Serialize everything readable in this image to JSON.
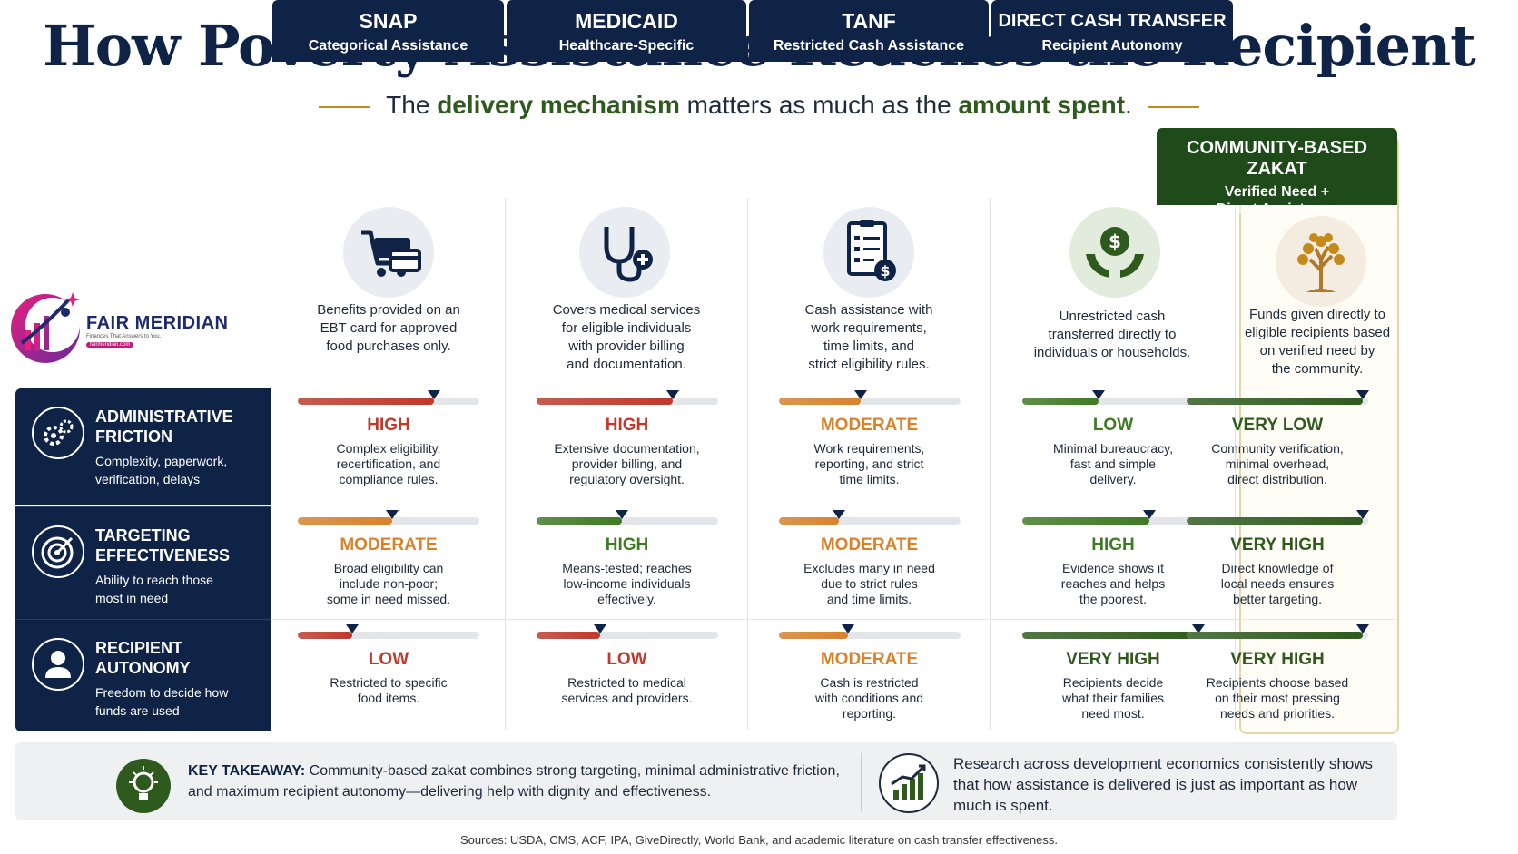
{
  "title": "How Poverty Assistance Reaches the Recipient",
  "subtitle": {
    "pre": "The ",
    "em1": "delivery mechanism",
    "mid": " matters as much as the ",
    "em2": "amount spent",
    "post": "."
  },
  "logo": {
    "name": "FAIR MERIDIAN",
    "tagline": "Finances That Answers to You.",
    "url": "fairmeridian.com"
  },
  "columns": [
    {
      "name": "SNAP",
      "sub": "Categorical Assistance",
      "icon": "shopping-cart-card-icon",
      "desc": [
        "Benefits provided on an",
        "EBT card for approved",
        "food purchases only."
      ]
    },
    {
      "name": "MEDICAID",
      "sub": "Healthcare-Specific",
      "icon": "stethoscope-icon",
      "desc": [
        "Covers medical services",
        "for eligible individuals",
        "with provider billing",
        "and documentation."
      ]
    },
    {
      "name": "TANF",
      "sub": "Restricted Cash Assistance",
      "icon": "document-dollar-icon",
      "desc": [
        "Cash assistance with",
        "work requirements,",
        "time limits, and",
        "strict eligibility rules."
      ]
    },
    {
      "name": "DIRECT CASH TRANSFER",
      "sub": "Recipient Autonomy",
      "icon": "hands-dollar-icon",
      "desc": [
        "Unrestricted cash",
        "transferred directly to",
        "individuals or households."
      ]
    },
    {
      "name": "COMMUNITY-BASED ZAKAT",
      "sub": "Verified Need +",
      "sub2": "Direct Assistance",
      "icon": "tree-icon",
      "desc": [
        "Funds given directly to",
        "eligible recipients based",
        "on verified need by",
        "the community."
      ]
    }
  ],
  "rows": [
    {
      "title1": "ADMINISTRATIVE",
      "title2": "FRICTION",
      "sub": [
        "Complexity, paperwork,",
        "verification, delays"
      ],
      "icon": "gears-icon",
      "cells": [
        {
          "rating": "HIGH",
          "level": 0.75,
          "color": "#c0392b",
          "desc": [
            "Complex eligibility,",
            "recertification, and",
            "compliance rules."
          ]
        },
        {
          "rating": "HIGH",
          "level": 0.75,
          "color": "#c0392b",
          "desc": [
            "Extensive documentation,",
            "provider billing, and",
            "regulatory oversight."
          ]
        },
        {
          "rating": "MODERATE",
          "level": 0.45,
          "color": "#d9822b",
          "desc": [
            "Work requirements,",
            "reporting, and strict",
            "time limits."
          ]
        },
        {
          "rating": "LOW",
          "level": 0.42,
          "color": "#3f7a24",
          "desc": [
            "Minimal bureaucracy,",
            "fast and simple",
            "delivery."
          ]
        },
        {
          "rating": "VERY LOW",
          "level": 0.97,
          "color": "#2f5a1e",
          "desc": [
            "Community verification,",
            "minimal overhead,",
            "direct distribution."
          ]
        }
      ]
    },
    {
      "title1": "TARGETING",
      "title2": "EFFECTIVENESS",
      "sub": [
        "Ability to reach those",
        "most in need"
      ],
      "icon": "target-icon",
      "cells": [
        {
          "rating": "MODERATE",
          "level": 0.52,
          "color": "#d9822b",
          "desc": [
            "Broad eligibility can",
            "include non-poor;",
            "some in need missed."
          ]
        },
        {
          "rating": "HIGH",
          "level": 0.47,
          "color": "#3f7a24",
          "desc": [
            "Means-tested; reaches",
            "low-income individuals",
            "effectively."
          ]
        },
        {
          "rating": "MODERATE",
          "level": 0.33,
          "color": "#d9822b",
          "desc": [
            "Excludes many in need",
            "due to strict rules",
            "and time limits."
          ]
        },
        {
          "rating": "HIGH",
          "level": 0.7,
          "color": "#3f7a24",
          "desc": [
            "Evidence shows it",
            "reaches and helps",
            "the poorest."
          ]
        },
        {
          "rating": "VERY HIGH",
          "level": 0.97,
          "color": "#2f5a1e",
          "desc": [
            "Direct knowledge of",
            "local needs ensures",
            "better targeting."
          ]
        }
      ]
    },
    {
      "title1": "RECIPIENT",
      "title2": "AUTONOMY",
      "sub": [
        "Freedom to decide how",
        "funds are used"
      ],
      "icon": "person-icon",
      "cells": [
        {
          "rating": "LOW",
          "level": 0.3,
          "color": "#c0392b",
          "desc": [
            "Restricted to specific",
            "food items."
          ]
        },
        {
          "rating": "LOW",
          "level": 0.35,
          "color": "#c0392b",
          "desc": [
            "Restricted to medical",
            "services and providers."
          ]
        },
        {
          "rating": "MODERATE",
          "level": 0.38,
          "color": "#d9822b",
          "desc": [
            "Cash is restricted",
            "with conditions and",
            "reporting."
          ]
        },
        {
          "rating": "VERY HIGH",
          "level": 0.97,
          "color": "#2f5a1e",
          "desc": [
            "Recipients decide",
            "what their families",
            "need most."
          ]
        },
        {
          "rating": "VERY HIGH",
          "level": 0.97,
          "color": "#2f5a1e",
          "desc": [
            "Recipients choose based",
            "on their most pressing",
            "needs and priorities."
          ]
        }
      ]
    }
  ],
  "takeaway": {
    "label": "KEY TAKEAWAY:",
    "text": " Community-based zakat combines strong targeting, minimal administrative friction, and maximum recipient autonomy—delivering help with dignity and effectiveness."
  },
  "research": "Research across development economics consistently shows that how assistance is delivered is just as important as how much is spent.",
  "sources": "Sources:  USDA, CMS, ACF, IPA, GiveDirectly, World Bank, and academic literature on cash transfer effectiveness."
}
